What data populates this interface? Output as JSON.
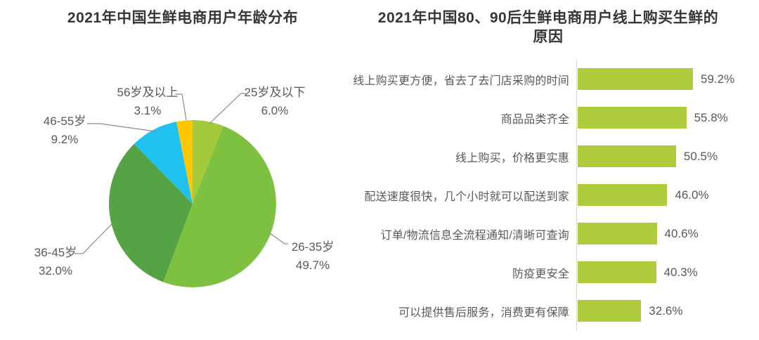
{
  "styles": {
    "background": "#ffffff",
    "title_color": "#363636",
    "label_color": "#595959",
    "leader_line_color": "#8c8c8c",
    "axis_line_color": "#d9d9d9"
  },
  "chart_data": [
    {
      "type": "pie",
      "title": "2021年中国生鲜电商用户年龄分布",
      "unit": "%",
      "direction": "clockwise",
      "start_angle_deg": 0,
      "legend": "none",
      "slices": [
        {
          "label": "25岁及以下",
          "value": 6.0,
          "pct_label": "6.0%",
          "color": "#a4ca3b"
        },
        {
          "label": "26-35岁",
          "value": 49.7,
          "pct_label": "49.7%",
          "color": "#7ec03f"
        },
        {
          "label": "36-45岁",
          "value": 32.0,
          "pct_label": "32.0%",
          "color": "#56a345"
        },
        {
          "label": "46-55岁",
          "value": 9.2,
          "pct_label": "9.2%",
          "color": "#1fc2ef"
        },
        {
          "label": "56岁及以上",
          "value": 3.1,
          "pct_label": "3.1%",
          "color": "#fec701"
        }
      ]
    },
    {
      "type": "bar",
      "orientation": "horizontal",
      "title": "2021年中国80、90后生鲜电商用户线上购买生鲜的原因",
      "title_lines": [
        "2021年中国80、90后生鲜电商用户线上购买生鲜的",
        "原因"
      ],
      "categories": [
        "线上购买更方便，省去了去门店采购的时间",
        "商品品类齐全",
        "线上购买，价格更实惠",
        "配送速度很快，几个小时就可以配送到家",
        "订单/物流信息全流程通知/清晰可查询",
        "防疫更安全",
        "可以提供售后服务，消费更有保障"
      ],
      "values": [
        59.2,
        55.8,
        50.5,
        46.0,
        40.6,
        40.3,
        32.6
      ],
      "value_labels": [
        "59.2%",
        "55.8%",
        "50.5%",
        "46.0%",
        "40.6%",
        "40.3%",
        "32.6%"
      ],
      "bar_color": "#aecb3c",
      "xlim": [
        0,
        65
      ],
      "grid": false,
      "value_label_position": "right-of-bar"
    }
  ]
}
